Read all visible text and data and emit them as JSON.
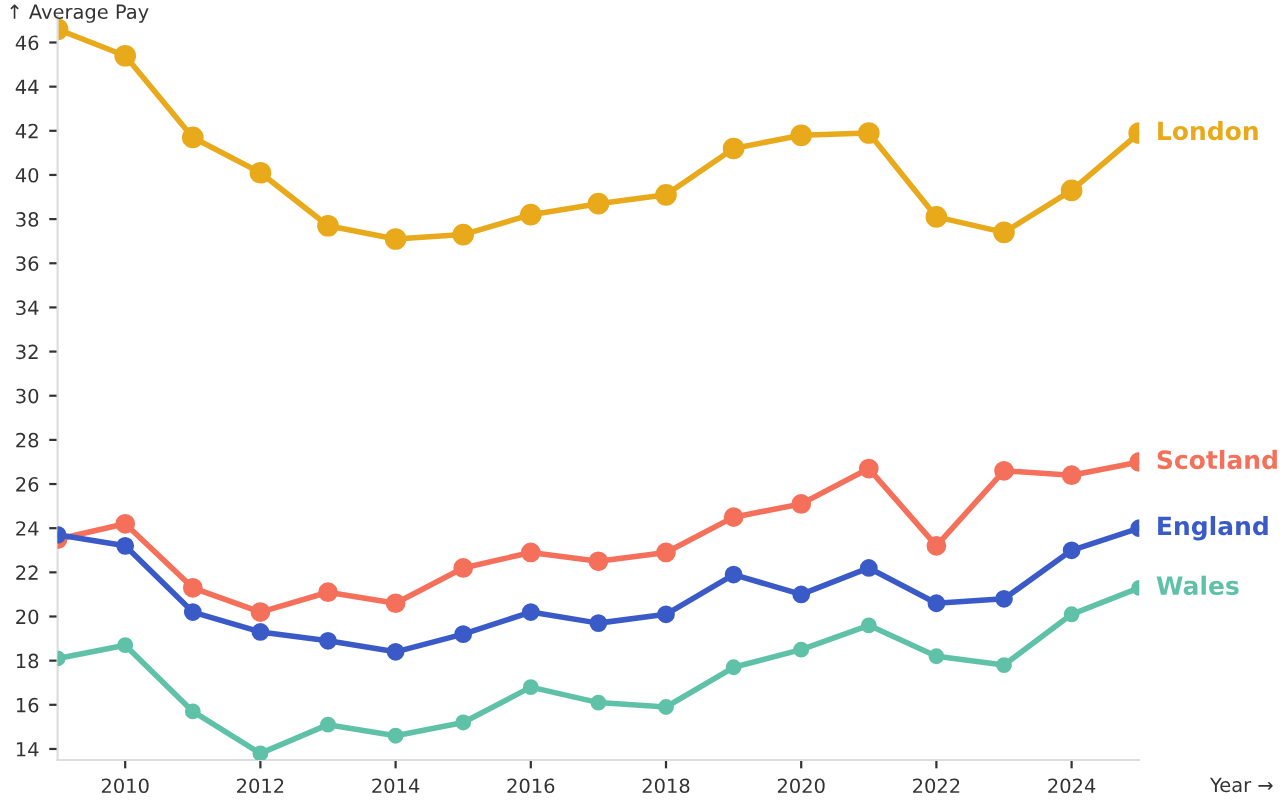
{
  "chart_data": {
    "type": "line",
    "xlabel": "Year →",
    "ylabel": "↑ Average Pay",
    "x": [
      2009,
      2010,
      2011,
      2012,
      2013,
      2014,
      2015,
      2016,
      2017,
      2018,
      2019,
      2020,
      2021,
      2022,
      2023,
      2024,
      2025
    ],
    "series": [
      {
        "name": "London",
        "color": "#e8a91b",
        "values": [
          46.6,
          45.4,
          41.7,
          40.1,
          37.7,
          37.1,
          37.3,
          38.2,
          38.7,
          39.1,
          41.2,
          41.8,
          41.9,
          38.1,
          37.4,
          39.3,
          41.9
        ]
      },
      {
        "name": "Scotland",
        "color": "#f4705a",
        "values": [
          23.5,
          24.2,
          21.3,
          20.2,
          21.1,
          20.6,
          22.2,
          22.9,
          22.5,
          22.9,
          24.5,
          25.1,
          26.7,
          23.2,
          26.6,
          26.4,
          27.0
        ]
      },
      {
        "name": "England",
        "color": "#3a5bc7",
        "values": [
          23.7,
          23.2,
          20.2,
          19.3,
          18.9,
          18.4,
          19.2,
          20.2,
          19.7,
          20.1,
          21.9,
          21.0,
          22.2,
          20.6,
          20.8,
          23.0,
          24.0
        ]
      },
      {
        "name": "Wales",
        "color": "#5fc2a8",
        "values": [
          18.1,
          18.7,
          15.7,
          13.8,
          15.1,
          14.6,
          15.2,
          16.8,
          16.1,
          15.9,
          17.7,
          18.5,
          19.6,
          18.2,
          17.8,
          20.1,
          21.3
        ]
      }
    ],
    "xlim": [
      2009,
      2025
    ],
    "ylim": [
      13.5,
      47.2
    ],
    "xticks": [
      2010,
      2012,
      2014,
      2016,
      2018,
      2020,
      2022,
      2024
    ],
    "yticks": [
      14,
      16,
      18,
      20,
      22,
      24,
      26,
      28,
      30,
      32,
      34,
      36,
      38,
      40,
      42,
      44,
      46
    ],
    "marker": "circle",
    "line_style": "solid",
    "grid": false,
    "legend": false
  }
}
